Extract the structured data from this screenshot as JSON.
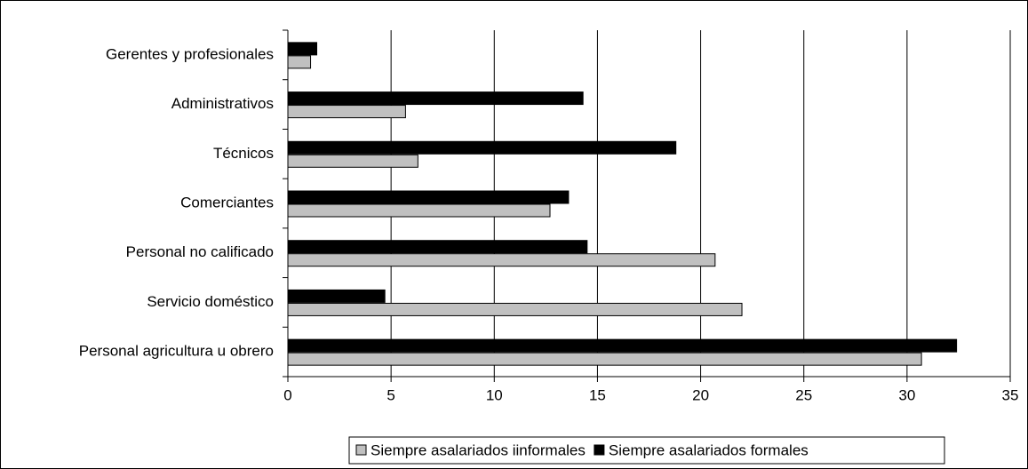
{
  "chart_data": {
    "type": "hbar",
    "categories": [
      "Gerentes y profesionales",
      "Administrativos",
      "Técnicos",
      "Comerciantes",
      "Personal no calificado",
      "Servicio doméstico",
      "Personal agricultura u obrero"
    ],
    "series": [
      {
        "name": "Siempre asalariados iinformales",
        "color": "#c0c0c0",
        "values": [
          1.1,
          5.7,
          6.3,
          12.7,
          20.7,
          22.0,
          30.7
        ]
      },
      {
        "name": "Siempre asalariados formales",
        "color": "#000000",
        "values": [
          1.4,
          14.3,
          18.8,
          13.6,
          14.5,
          4.7,
          32.4
        ]
      }
    ],
    "xlim": [
      0,
      35
    ],
    "xticks": [
      0,
      5,
      10,
      15,
      20,
      25,
      30,
      35
    ],
    "grid": true,
    "legend": "bottom"
  }
}
